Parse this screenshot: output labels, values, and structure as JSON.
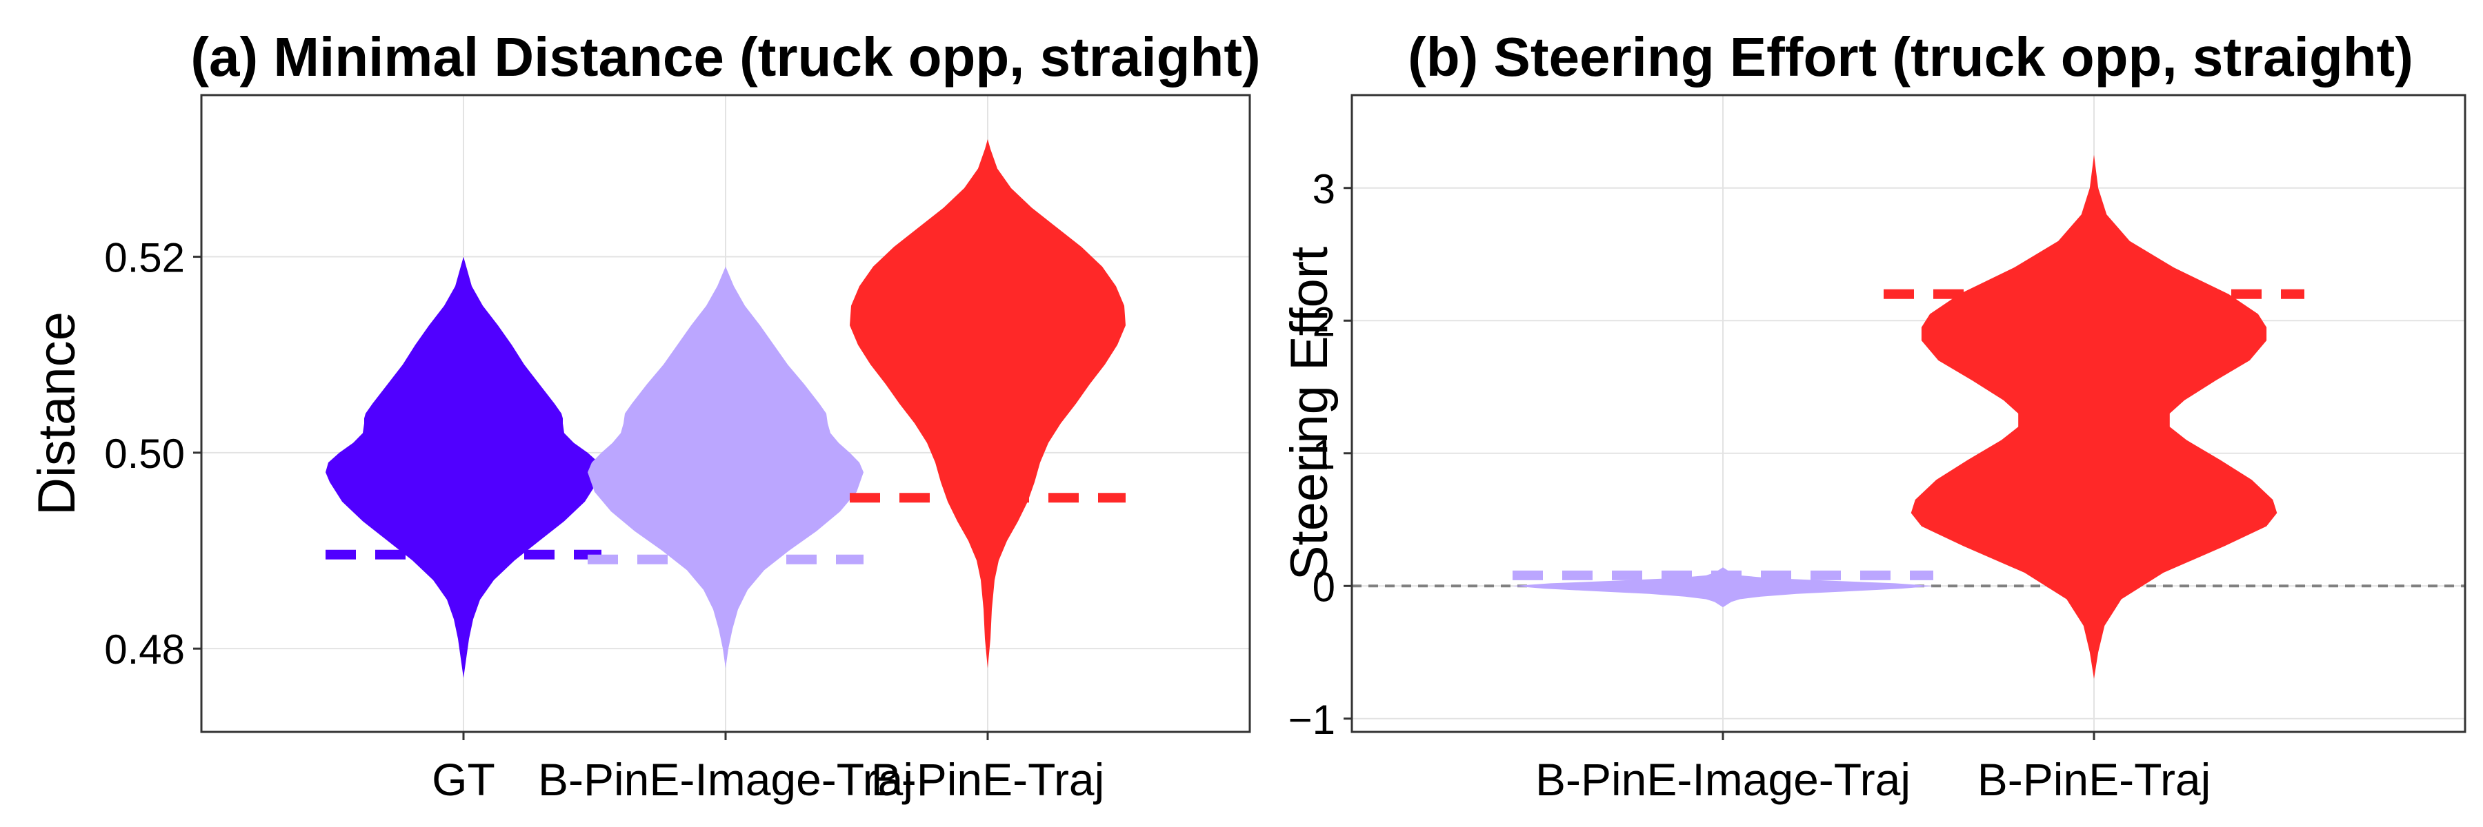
{
  "chart_data": [
    {
      "type": "violin",
      "title": "(a) Minimal Distance (truck opp, straight)",
      "xlabel": "",
      "ylabel": "Distance",
      "categories": [
        "GT",
        "B-PinE-Image-Traj",
        "B-PinE-Traj"
      ],
      "ylim": [
        0.4715,
        0.5365
      ],
      "yticks": [
        0.48,
        0.5,
        0.52
      ],
      "yticklabels": [
        "0.48",
        "0.50",
        "0.52"
      ],
      "grid": true,
      "colors": [
        "#5000FF",
        "#BBA6FF",
        "#FF2828"
      ],
      "series": [
        {
          "category": "GT",
          "color": "#5000FF",
          "y_range": [
            0.477,
            0.52
          ],
          "density_profile": [
            [
              0.477,
              0.0
            ],
            [
              0.479,
              0.02
            ],
            [
              0.481,
              0.04
            ],
            [
              0.483,
              0.07
            ],
            [
              0.485,
              0.12
            ],
            [
              0.487,
              0.22
            ],
            [
              0.489,
              0.37
            ],
            [
              0.491,
              0.55
            ],
            [
              0.493,
              0.73
            ],
            [
              0.495,
              0.88
            ],
            [
              0.497,
              0.97
            ],
            [
              0.498,
              1.0
            ],
            [
              0.499,
              0.98
            ],
            [
              0.5,
              0.9
            ],
            [
              0.501,
              0.8
            ],
            [
              0.502,
              0.73
            ],
            [
              0.503,
              0.72
            ],
            [
              0.5035,
              0.72
            ],
            [
              0.504,
              0.71
            ],
            [
              0.505,
              0.66
            ],
            [
              0.507,
              0.55
            ],
            [
              0.509,
              0.44
            ],
            [
              0.511,
              0.35
            ],
            [
              0.513,
              0.25
            ],
            [
              0.515,
              0.14
            ],
            [
              0.517,
              0.06
            ],
            [
              0.519,
              0.02
            ],
            [
              0.52,
              0.0
            ]
          ],
          "mean_line": 0.4896
        },
        {
          "category": "B-PinE-Image-Traj",
          "color": "#BBA6FF",
          "y_range": [
            0.478,
            0.519
          ],
          "density_profile": [
            [
              0.478,
              0.0
            ],
            [
              0.48,
              0.02
            ],
            [
              0.482,
              0.05
            ],
            [
              0.484,
              0.09
            ],
            [
              0.486,
              0.16
            ],
            [
              0.488,
              0.28
            ],
            [
              0.49,
              0.46
            ],
            [
              0.492,
              0.66
            ],
            [
              0.494,
              0.83
            ],
            [
              0.496,
              0.95
            ],
            [
              0.498,
              1.0
            ],
            [
              0.499,
              0.97
            ],
            [
              0.5,
              0.9
            ],
            [
              0.501,
              0.82
            ],
            [
              0.502,
              0.76
            ],
            [
              0.503,
              0.74
            ],
            [
              0.504,
              0.73
            ],
            [
              0.505,
              0.68
            ],
            [
              0.507,
              0.57
            ],
            [
              0.509,
              0.45
            ],
            [
              0.511,
              0.35
            ],
            [
              0.513,
              0.25
            ],
            [
              0.515,
              0.14
            ],
            [
              0.517,
              0.06
            ],
            [
              0.519,
              0.0
            ]
          ],
          "mean_line": 0.4891
        },
        {
          "category": "B-PinE-Traj",
          "color": "#FF2828",
          "y_range": [
            0.478,
            0.532
          ],
          "density_profile": [
            [
              0.478,
              0.0
            ],
            [
              0.481,
              0.02
            ],
            [
              0.484,
              0.03
            ],
            [
              0.487,
              0.05
            ],
            [
              0.489,
              0.08
            ],
            [
              0.491,
              0.14
            ],
            [
              0.493,
              0.22
            ],
            [
              0.495,
              0.29
            ],
            [
              0.497,
              0.34
            ],
            [
              0.499,
              0.38
            ],
            [
              0.501,
              0.44
            ],
            [
              0.503,
              0.53
            ],
            [
              0.505,
              0.64
            ],
            [
              0.507,
              0.74
            ],
            [
              0.509,
              0.85
            ],
            [
              0.511,
              0.94
            ],
            [
              0.513,
              1.0
            ],
            [
              0.515,
              0.99
            ],
            [
              0.517,
              0.93
            ],
            [
              0.519,
              0.83
            ],
            [
              0.521,
              0.68
            ],
            [
              0.523,
              0.5
            ],
            [
              0.525,
              0.32
            ],
            [
              0.527,
              0.17
            ],
            [
              0.529,
              0.07
            ],
            [
              0.531,
              0.02
            ],
            [
              0.532,
              0.0
            ]
          ],
          "mean_line": 0.4954
        }
      ]
    },
    {
      "type": "violin",
      "title": "(b) Steering Effort (truck opp, straight)",
      "xlabel": "",
      "ylabel": "Steering Effort",
      "categories": [
        "B-PinE-Image-Traj",
        "B-PinE-Traj"
      ],
      "ylim": [
        -1.1,
        3.7
      ],
      "yticks": [
        -1,
        0,
        1,
        2,
        3
      ],
      "yticklabels": [
        "−1",
        "0",
        "1",
        "2",
        "3"
      ],
      "grid": true,
      "reference_line": 0,
      "colors": [
        "#BBA6FF",
        "#FF2828"
      ],
      "series": [
        {
          "category": "B-PinE-Image-Traj",
          "color": "#BBA6FF",
          "y_range": [
            -0.16,
            0.14
          ],
          "density_profile": [
            [
              -0.16,
              0.0
            ],
            [
              -0.14,
              0.02
            ],
            [
              -0.12,
              0.04
            ],
            [
              -0.1,
              0.08
            ],
            [
              -0.08,
              0.18
            ],
            [
              -0.06,
              0.35
            ],
            [
              -0.04,
              0.6
            ],
            [
              -0.02,
              0.85
            ],
            [
              0.0,
              1.0
            ],
            [
              0.02,
              0.82
            ],
            [
              0.04,
              0.5
            ],
            [
              0.06,
              0.22
            ],
            [
              0.08,
              0.08
            ],
            [
              0.1,
              0.04
            ],
            [
              0.12,
              0.02
            ],
            [
              0.14,
              0.0
            ]
          ],
          "mean_line": 0.08
        },
        {
          "category": "B-PinE-Traj",
          "color": "#FF2828",
          "y_range": [
            -0.7,
            3.25
          ],
          "density_profile": [
            [
              -0.7,
              0.0
            ],
            [
              -0.5,
              0.02
            ],
            [
              -0.3,
              0.05
            ],
            [
              -0.1,
              0.13
            ],
            [
              0.1,
              0.33
            ],
            [
              0.3,
              0.62
            ],
            [
              0.45,
              0.82
            ],
            [
              0.55,
              0.87
            ],
            [
              0.65,
              0.85
            ],
            [
              0.8,
              0.75
            ],
            [
              0.95,
              0.6
            ],
            [
              1.1,
              0.44
            ],
            [
              1.2,
              0.36
            ],
            [
              1.3,
              0.36
            ],
            [
              1.4,
              0.43
            ],
            [
              1.55,
              0.58
            ],
            [
              1.7,
              0.74
            ],
            [
              1.85,
              0.82
            ],
            [
              1.95,
              0.82
            ],
            [
              2.05,
              0.78
            ],
            [
              2.2,
              0.64
            ],
            [
              2.4,
              0.38
            ],
            [
              2.6,
              0.17
            ],
            [
              2.8,
              0.06
            ],
            [
              3.0,
              0.02
            ],
            [
              3.25,
              0.0
            ]
          ],
          "mean_line": 2.2
        }
      ]
    }
  ]
}
